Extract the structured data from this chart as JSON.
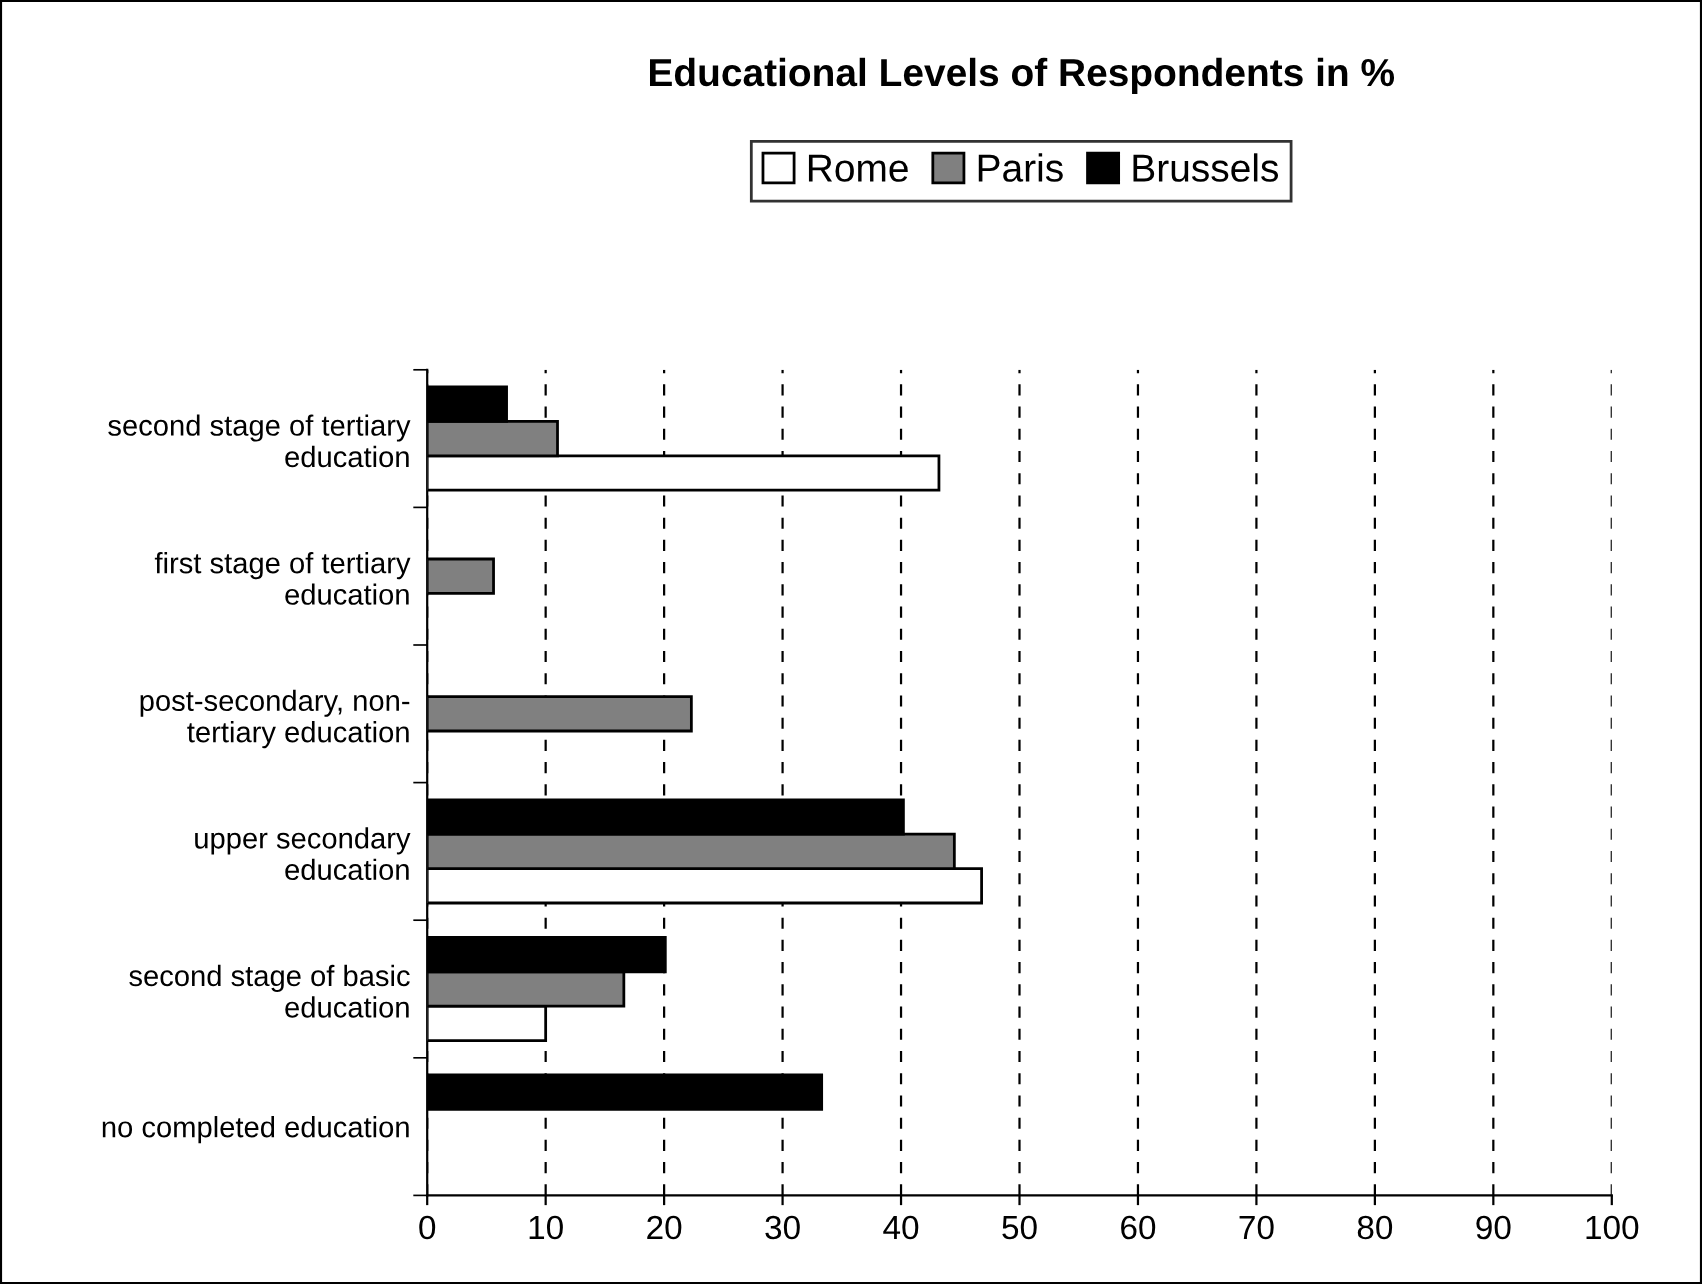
{
  "chart_data": {
    "type": "bar",
    "orientation": "horizontal",
    "title": "Educational Levels of Respondents in %",
    "categories": [
      "second stage of tertiary\neducation",
      "first stage of tertiary\neducation",
      "post-secondary, non-\ntertiary education",
      "upper secondary\neducation",
      "second stage of basic\neducation",
      "no completed education"
    ],
    "series": [
      {
        "name": "Rome",
        "color": "#ffffff",
        "values": [
          43.2,
          null,
          null,
          46.8,
          10.0,
          null
        ]
      },
      {
        "name": "Paris",
        "color": "#808080",
        "values": [
          11.0,
          5.6,
          22.3,
          44.5,
          16.6,
          null
        ]
      },
      {
        "name": "Brussels",
        "color": "#000000",
        "values": [
          6.7,
          null,
          null,
          40.2,
          20.1,
          33.3
        ]
      }
    ],
    "xlim": [
      0,
      100
    ],
    "xticks": [
      0,
      10,
      20,
      30,
      40,
      50,
      60,
      70,
      80,
      90,
      100
    ],
    "grid": "x",
    "legend": "top"
  }
}
